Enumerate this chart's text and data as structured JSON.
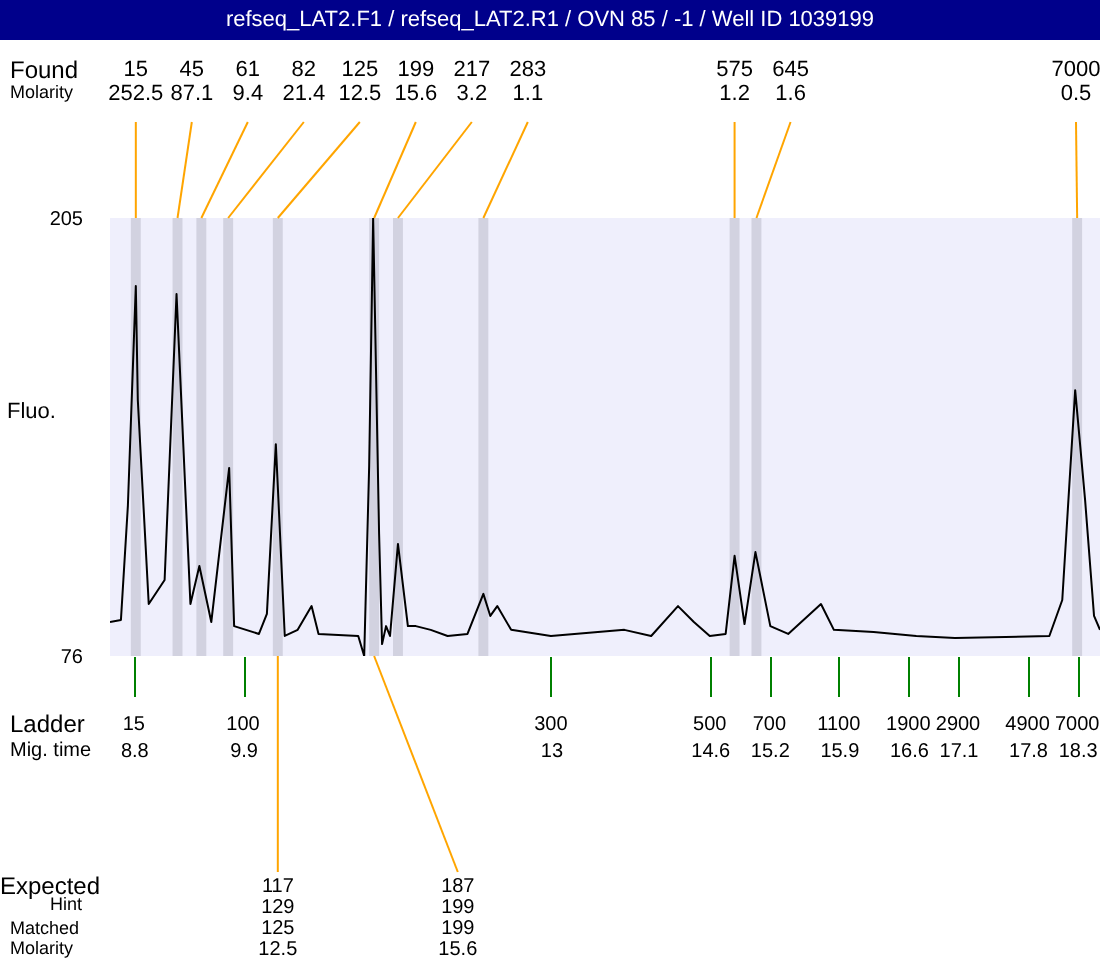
{
  "chart_data": {
    "type": "line",
    "title": "refseq_LAT2.F1 / refseq_LAT2.R1 / OVN 85 / -1 / Well ID 1039199",
    "ylabel": "Fluo.",
    "xlim": [
      8.56,
      18.53
    ],
    "ylim": [
      76,
      205
    ],
    "yticks": [
      76,
      205
    ],
    "xticks": [
      8.8,
      9.9,
      13,
      14.6,
      15.2,
      15.9,
      16.6,
      17.1,
      17.8,
      18.3
    ],
    "grid": false,
    "series": [
      {
        "color": "#000000",
        "x": [
          8.56,
          8.67,
          8.74,
          8.82,
          8.84,
          8.95,
          9.11,
          9.23,
          9.37,
          9.46,
          9.58,
          9.76,
          9.81,
          10.06,
          10.14,
          10.23,
          10.32,
          10.45,
          10.59,
          10.66,
          11.06,
          11.12,
          11.17,
          11.21,
          11.27,
          11.3,
          11.34,
          11.38,
          11.46,
          11.56,
          11.64,
          11.79,
          11.96,
          12.16,
          12.32,
          12.39,
          12.46,
          12.6,
          13.0,
          13.74,
          14.01,
          14.28,
          14.44,
          14.6,
          14.76,
          14.85,
          14.95,
          15.06,
          15.21,
          15.39,
          15.72,
          15.85,
          16.25,
          16.68,
          17.07,
          18.02,
          18.15,
          18.28,
          18.38,
          18.47,
          18.53
        ],
        "values": [
          86.0,
          86.6,
          120.2,
          185.0,
          151.4,
          91.3,
          98.4,
          182.6,
          91.3,
          102.5,
          86.0,
          131.4,
          84.8,
          82.5,
          88.4,
          138.4,
          81.9,
          83.7,
          90.7,
          82.5,
          81.9,
          76,
          132.0,
          205,
          111.9,
          79.5,
          84.8,
          81.9,
          109.0,
          84.8,
          84.8,
          83.7,
          81.9,
          82.5,
          94.3,
          87.8,
          90.7,
          83.7,
          81.9,
          83.7,
          81.9,
          90.7,
          86.0,
          81.9,
          82.5,
          105.5,
          85.4,
          106.6,
          84.8,
          82.5,
          91.3,
          83.7,
          83.1,
          81.9,
          81.3,
          81.9,
          92.5,
          154.3,
          121.9,
          87.8,
          83.7
        ]
      }
    ],
    "bands": [
      {
        "axis": "x",
        "from": 8.77,
        "to": 8.87,
        "color": "#d2d2e0"
      },
      {
        "axis": "x",
        "from": 9.19,
        "to": 9.29,
        "color": "#d2d2e0"
      },
      {
        "axis": "x",
        "from": 9.43,
        "to": 9.53,
        "color": "#d2d2e0"
      },
      {
        "axis": "x",
        "from": 9.7,
        "to": 9.8,
        "color": "#d2d2e0"
      },
      {
        "axis": "x",
        "from": 10.2,
        "to": 10.3,
        "color": "#d2d2e0"
      },
      {
        "axis": "x",
        "from": 11.17,
        "to": 11.27,
        "color": "#d2d2e0"
      },
      {
        "axis": "x",
        "from": 11.41,
        "to": 11.51,
        "color": "#d2d2e0"
      },
      {
        "axis": "x",
        "from": 12.27,
        "to": 12.37,
        "color": "#d2d2e0"
      },
      {
        "axis": "x",
        "from": 14.8,
        "to": 14.9,
        "color": "#d2d2e0"
      },
      {
        "axis": "x",
        "from": 15.02,
        "to": 15.12,
        "color": "#d2d2e0"
      },
      {
        "axis": "x",
        "from": 18.25,
        "to": 18.35,
        "color": "#d2d2e0"
      }
    ],
    "annotations": [
      "Found",
      "Molarity",
      "Ladder",
      "Mig. time",
      "Expected",
      "Hint",
      "Matched",
      "Molarity",
      "15",
      "100",
      "300",
      "500",
      "700",
      "1100",
      "1900",
      "2900",
      "4900",
      "7000",
      {
        "text": "15\n252.5",
        "x": 8.82,
        "y": 205
      },
      {
        "text": "45\n87.1",
        "x": 9.24,
        "y": 205
      },
      {
        "text": "61\n9.4",
        "x": 9.48,
        "y": 205
      },
      {
        "text": "82\n21.4",
        "x": 9.75,
        "y": 205
      },
      {
        "text": "125\n12.5",
        "x": 10.25,
        "y": 205
      },
      {
        "text": "199\n15.6",
        "x": 11.22,
        "y": 205
      },
      {
        "text": "217\n3.2",
        "x": 11.46,
        "y": 205
      },
      {
        "text": "283\n1.1",
        "x": 12.32,
        "y": 205
      },
      {
        "text": "575\n1.2",
        "x": 14.85,
        "y": 205
      },
      {
        "text": "645\n1.6",
        "x": 15.07,
        "y": 205
      },
      {
        "text": "7000\n0.5",
        "x": 18.3,
        "y": 205
      },
      {
        "text": "117\n129\n125\n12.5",
        "x": 10.25
      },
      {
        "text": "187\n199\n199\n15.6",
        "x": 11.22
      }
    ]
  }
}
